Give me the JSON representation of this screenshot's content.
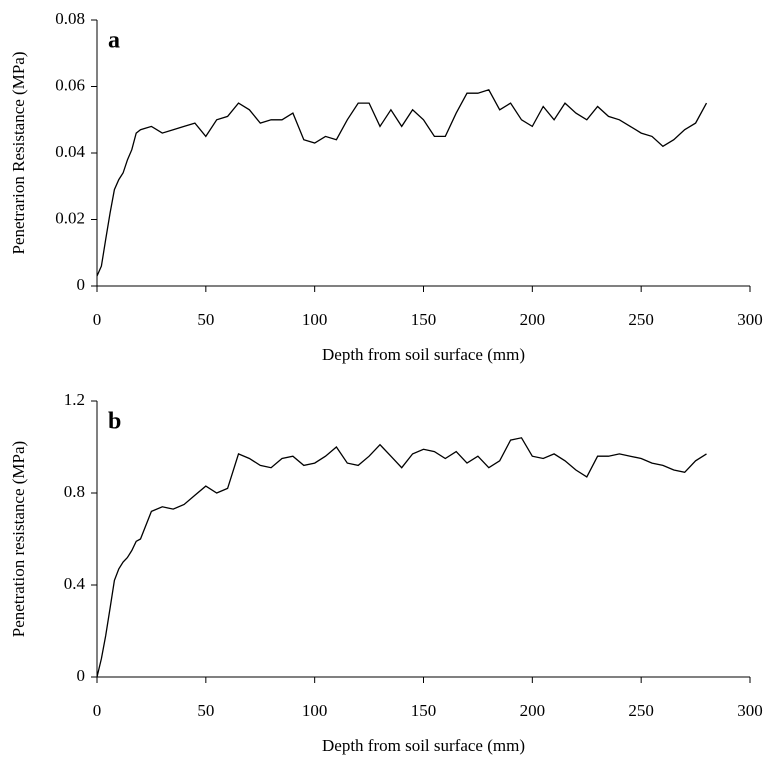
{
  "chart_data": [
    {
      "type": "line",
      "panel_label": "a",
      "x_label": "Depth from soil surface (mm)",
      "y_label": "Penetrarion Resistance (MPa)",
      "xlim": [
        0,
        300
      ],
      "xticks": [
        0,
        50,
        100,
        150,
        200,
        250,
        300
      ],
      "ylim": [
        0,
        0.08
      ],
      "yticks": [
        0,
        0.02,
        0.04,
        0.06,
        0.08
      ],
      "color": "#000000",
      "x": [
        0,
        2,
        4,
        6,
        8,
        10,
        12,
        14,
        16,
        18,
        20,
        25,
        30,
        35,
        40,
        45,
        50,
        55,
        60,
        65,
        70,
        75,
        80,
        85,
        90,
        95,
        100,
        105,
        110,
        115,
        120,
        125,
        130,
        135,
        140,
        145,
        150,
        155,
        160,
        165,
        170,
        175,
        180,
        185,
        190,
        195,
        200,
        205,
        210,
        215,
        220,
        225,
        230,
        235,
        240,
        245,
        250,
        255,
        260,
        265,
        270,
        275,
        280
      ],
      "values": [
        0.003,
        0.006,
        0.014,
        0.022,
        0.029,
        0.032,
        0.034,
        0.038,
        0.041,
        0.046,
        0.047,
        0.048,
        0.046,
        0.047,
        0.048,
        0.049,
        0.045,
        0.05,
        0.051,
        0.055,
        0.053,
        0.049,
        0.05,
        0.05,
        0.052,
        0.044,
        0.043,
        0.045,
        0.044,
        0.05,
        0.055,
        0.055,
        0.048,
        0.053,
        0.048,
        0.053,
        0.05,
        0.045,
        0.045,
        0.052,
        0.058,
        0.058,
        0.059,
        0.053,
        0.055,
        0.05,
        0.048,
        0.054,
        0.05,
        0.055,
        0.052,
        0.05,
        0.054,
        0.051,
        0.05,
        0.048,
        0.046,
        0.045,
        0.042,
        0.044,
        0.047,
        0.049,
        0.055
      ]
    },
    {
      "type": "line",
      "panel_label": "b",
      "x_label": "Depth from soil surface (mm)",
      "y_label": "Penetration resistance (MPa)",
      "xlim": [
        0,
        300
      ],
      "xticks": [
        0,
        50,
        100,
        150,
        200,
        250,
        300
      ],
      "ylim": [
        0,
        1.2
      ],
      "yticks": [
        0,
        0.4,
        0.8,
        1.2
      ],
      "color": "#000000",
      "x": [
        0,
        2,
        4,
        6,
        8,
        10,
        12,
        14,
        16,
        18,
        20,
        25,
        30,
        35,
        40,
        45,
        50,
        55,
        60,
        65,
        70,
        75,
        80,
        85,
        90,
        95,
        100,
        105,
        110,
        115,
        120,
        125,
        130,
        135,
        140,
        145,
        150,
        155,
        160,
        165,
        170,
        175,
        180,
        185,
        190,
        195,
        200,
        205,
        210,
        215,
        220,
        225,
        230,
        235,
        240,
        245,
        250,
        255,
        260,
        265,
        270,
        275,
        280
      ],
      "values": [
        0.0,
        0.08,
        0.18,
        0.3,
        0.42,
        0.47,
        0.5,
        0.52,
        0.55,
        0.59,
        0.6,
        0.72,
        0.74,
        0.73,
        0.75,
        0.79,
        0.83,
        0.8,
        0.82,
        0.97,
        0.95,
        0.92,
        0.91,
        0.95,
        0.96,
        0.92,
        0.93,
        0.96,
        1.0,
        0.93,
        0.92,
        0.96,
        1.01,
        0.96,
        0.91,
        0.97,
        0.99,
        0.98,
        0.95,
        0.98,
        0.93,
        0.96,
        0.91,
        0.94,
        1.03,
        1.04,
        0.96,
        0.95,
        0.97,
        0.94,
        0.9,
        0.87,
        0.96,
        0.96,
        0.97,
        0.96,
        0.95,
        0.93,
        0.92,
        0.9,
        0.89,
        0.94,
        0.97
      ]
    }
  ]
}
